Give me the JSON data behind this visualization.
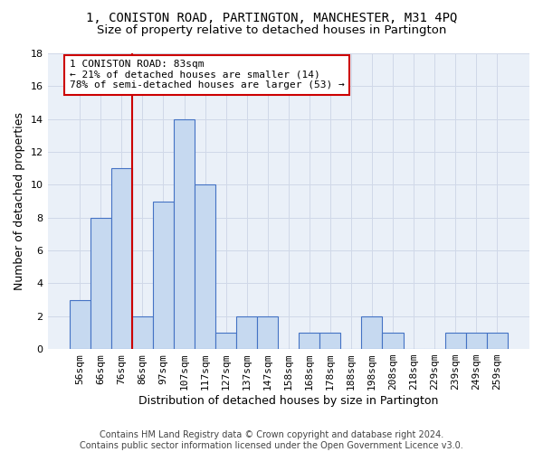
{
  "title": "1, CONISTON ROAD, PARTINGTON, MANCHESTER, M31 4PQ",
  "subtitle": "Size of property relative to detached houses in Partington",
  "xlabel": "Distribution of detached houses by size in Partington",
  "ylabel": "Number of detached properties",
  "categories": [
    "56sqm",
    "66sqm",
    "76sqm",
    "86sqm",
    "97sqm",
    "107sqm",
    "117sqm",
    "127sqm",
    "137sqm",
    "147sqm",
    "158sqm",
    "168sqm",
    "178sqm",
    "188sqm",
    "198sqm",
    "208sqm",
    "218sqm",
    "229sqm",
    "239sqm",
    "249sqm",
    "259sqm"
  ],
  "values": [
    3,
    8,
    11,
    2,
    9,
    14,
    10,
    1,
    2,
    2,
    0,
    1,
    1,
    0,
    2,
    1,
    0,
    0,
    1,
    1,
    1
  ],
  "bar_color": "#c6d9f0",
  "bar_edgecolor": "#4472c4",
  "grid_color": "#d0d8e8",
  "background_color": "#ffffff",
  "plot_background": "#eaf0f8",
  "vline_x": 2.5,
  "vline_color": "#cc0000",
  "annotation_line1": "1 CONISTON ROAD: 83sqm",
  "annotation_line2": "← 21% of detached houses are smaller (14)",
  "annotation_line3": "78% of semi-detached houses are larger (53) →",
  "annotation_box_color": "#ffffff",
  "annotation_box_edgecolor": "#cc0000",
  "ylim": [
    0,
    18
  ],
  "yticks": [
    0,
    2,
    4,
    6,
    8,
    10,
    12,
    14,
    16,
    18
  ],
  "footer": "Contains HM Land Registry data © Crown copyright and database right 2024.\nContains public sector information licensed under the Open Government Licence v3.0.",
  "title_fontsize": 10,
  "subtitle_fontsize": 9.5,
  "xlabel_fontsize": 9,
  "ylabel_fontsize": 9,
  "tick_fontsize": 8,
  "annotation_fontsize": 8,
  "footer_fontsize": 7
}
